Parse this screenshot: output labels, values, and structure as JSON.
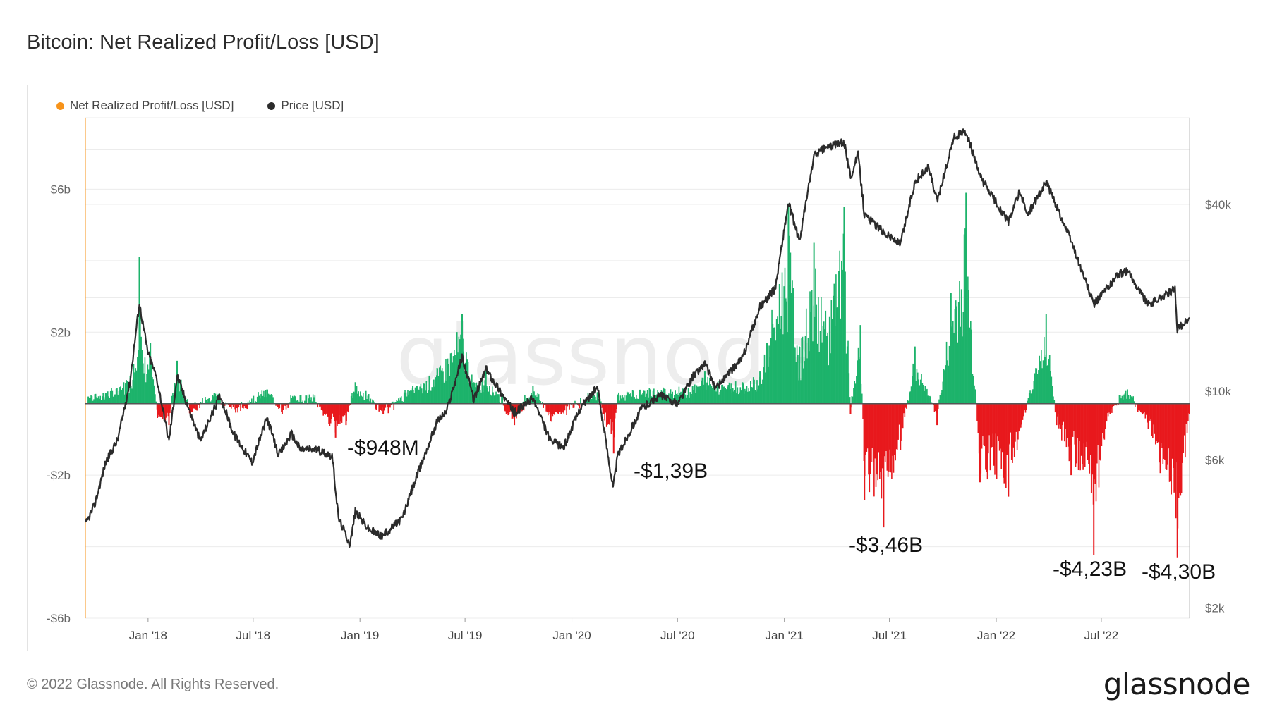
{
  "header": {
    "title": "Bitcoin: Net Realized Profit/Loss [USD]"
  },
  "footer": {
    "copyright": "© 2022 Glassnode. All Rights Reserved.",
    "brand": "glassnode"
  },
  "watermark": "glassnode",
  "colors": {
    "profit": "#1db36b",
    "loss": "#e8191d",
    "price": "#2b2b2b",
    "legend_nrpl": "#f7931a",
    "zero_line": "#555555",
    "grid": "#ececec"
  },
  "chart_data": {
    "type": "bar+line",
    "title": "Bitcoin: Net Realized Profit/Loss [USD]",
    "x_range": [
      "2017-09-15",
      "2022-11-30"
    ],
    "x_ticks": [
      "Jan '18",
      "Jul '18",
      "Jan '19",
      "Jul '19",
      "Jan '20",
      "Jul '20",
      "Jan '21",
      "Jul '21",
      "Jan '22",
      "Jul '22"
    ],
    "left_axis": {
      "label": "",
      "ticks": [
        "$6b",
        "$2b",
        "-$2b",
        "-$6b"
      ],
      "tick_values": [
        6,
        2,
        -2,
        -6
      ],
      "range": [
        -6,
        8
      ],
      "unit": "USD billions"
    },
    "right_axis": {
      "scale": "log",
      "ticks": [
        "$40k",
        "$10k",
        "$6k",
        "$2k"
      ],
      "tick_values": [
        40000,
        10000,
        6000,
        2000
      ],
      "unit": "USD"
    },
    "legend": [
      {
        "name": "Net Realized Profit/Loss [USD]",
        "color": "#f7931a"
      },
      {
        "name": "Price [USD]",
        "color": "#2b2b2b"
      }
    ],
    "annotations": [
      {
        "text": "-$948M",
        "date": "2018-11-20",
        "value_b": -0.95
      },
      {
        "text": "-$1,39B",
        "date": "2020-03-13",
        "value_b": -1.39
      },
      {
        "text": "-$3,46B",
        "date": "2021-06-21",
        "value_b": -3.46
      },
      {
        "text": "-$4,23B",
        "date": "2022-06-18",
        "value_b": -4.23
      },
      {
        "text": "-$4,30B",
        "date": "2022-11-09",
        "value_b": -4.3
      }
    ],
    "series": [
      {
        "name": "Price [USD]",
        "axis": "right",
        "points": [
          [
            "2017-09-15",
            3700
          ],
          [
            "2017-10-01",
            4300
          ],
          [
            "2017-10-20",
            5900
          ],
          [
            "2017-11-10",
            7000
          ],
          [
            "2017-12-01",
            10800
          ],
          [
            "2017-12-17",
            19200
          ],
          [
            "2017-12-31",
            13500
          ],
          [
            "2018-01-16",
            11000
          ],
          [
            "2018-02-06",
            6900
          ],
          [
            "2018-02-20",
            11200
          ],
          [
            "2018-03-10",
            9000
          ],
          [
            "2018-04-01",
            6900
          ],
          [
            "2018-05-05",
            9700
          ],
          [
            "2018-05-28",
            7300
          ],
          [
            "2018-06-29",
            5900
          ],
          [
            "2018-07-25",
            8200
          ],
          [
            "2018-08-14",
            6200
          ],
          [
            "2018-09-05",
            7300
          ],
          [
            "2018-09-20",
            6500
          ],
          [
            "2018-10-15",
            6500
          ],
          [
            "2018-11-14",
            6200
          ],
          [
            "2018-11-25",
            3900
          ],
          [
            "2018-12-15",
            3200
          ],
          [
            "2018-12-24",
            4100
          ],
          [
            "2019-01-15",
            3600
          ],
          [
            "2019-02-08",
            3400
          ],
          [
            "2019-03-15",
            3900
          ],
          [
            "2019-04-02",
            4900
          ],
          [
            "2019-05-14",
            8000
          ],
          [
            "2019-05-30",
            8600
          ],
          [
            "2019-06-26",
            12900
          ],
          [
            "2019-07-16",
            9400
          ],
          [
            "2019-08-06",
            11800
          ],
          [
            "2019-09-24",
            8500
          ],
          [
            "2019-10-26",
            9500
          ],
          [
            "2019-11-25",
            6900
          ],
          [
            "2019-12-18",
            6600
          ],
          [
            "2020-01-15",
            8800
          ],
          [
            "2020-02-14",
            10300
          ],
          [
            "2020-03-12",
            4900
          ],
          [
            "2020-03-20",
            6200
          ],
          [
            "2020-04-30",
            8800
          ],
          [
            "2020-06-01",
            9700
          ],
          [
            "2020-07-01",
            9100
          ],
          [
            "2020-07-27",
            11100
          ],
          [
            "2020-08-17",
            12300
          ],
          [
            "2020-09-05",
            10200
          ],
          [
            "2020-10-21",
            12800
          ],
          [
            "2020-11-20",
            18700
          ],
          [
            "2020-12-16",
            21400
          ],
          [
            "2021-01-08",
            40500
          ],
          [
            "2021-01-27",
            30500
          ],
          [
            "2021-02-21",
            57500
          ],
          [
            "2021-03-13",
            61000
          ],
          [
            "2021-04-14",
            63500
          ],
          [
            "2021-04-25",
            49000
          ],
          [
            "2021-05-08",
            58000
          ],
          [
            "2021-05-19",
            37000
          ],
          [
            "2021-06-22",
            32500
          ],
          [
            "2021-07-20",
            29800
          ],
          [
            "2021-08-14",
            47500
          ],
          [
            "2021-09-07",
            52700
          ],
          [
            "2021-09-21",
            40700
          ],
          [
            "2021-10-20",
            66000
          ],
          [
            "2021-11-10",
            68500
          ],
          [
            "2021-12-04",
            49200
          ],
          [
            "2022-01-22",
            35000
          ],
          [
            "2022-02-10",
            44000
          ],
          [
            "2022-02-24",
            37000
          ],
          [
            "2022-03-28",
            47300
          ],
          [
            "2022-05-10",
            30500
          ],
          [
            "2022-06-18",
            19000
          ],
          [
            "2022-07-30",
            23800
          ],
          [
            "2022-08-15",
            24400
          ],
          [
            "2022-09-20",
            19000
          ],
          [
            "2022-11-05",
            21300
          ],
          [
            "2022-11-09",
            15800
          ],
          [
            "2022-11-30",
            17100
          ]
        ]
      },
      {
        "name": "Net Realized Profit/Loss [USD]",
        "axis": "left",
        "unit": "USD billions",
        "points": [
          [
            "2017-09-20",
            0.2
          ],
          [
            "2017-10-20",
            0.3
          ],
          [
            "2017-11-20",
            0.6
          ],
          [
            "2017-12-07",
            1.1
          ],
          [
            "2017-12-17",
            4.1
          ],
          [
            "2017-12-22",
            1.5
          ],
          [
            "2018-01-05",
            1.7
          ],
          [
            "2018-01-17",
            -0.4
          ],
          [
            "2018-02-06",
            -0.6
          ],
          [
            "2018-02-20",
            1.2
          ],
          [
            "2018-03-15",
            -0.3
          ],
          [
            "2018-04-25",
            0.3
          ],
          [
            "2018-06-01",
            -0.25
          ],
          [
            "2018-07-25",
            0.4
          ],
          [
            "2018-08-20",
            -0.3
          ],
          [
            "2018-09-10",
            0.2
          ],
          [
            "2018-10-15",
            0.1
          ],
          [
            "2018-11-20",
            -0.95
          ],
          [
            "2018-12-08",
            -0.6
          ],
          [
            "2018-12-24",
            0.6
          ],
          [
            "2019-02-10",
            -0.3
          ],
          [
            "2019-04-02",
            0.5
          ],
          [
            "2019-05-14",
            1.0
          ],
          [
            "2019-06-26",
            2.5
          ],
          [
            "2019-07-16",
            0.6
          ],
          [
            "2019-08-06",
            0.9
          ],
          [
            "2019-09-24",
            -0.6
          ],
          [
            "2019-10-26",
            0.5
          ],
          [
            "2019-11-25",
            -0.5
          ],
          [
            "2020-02-14",
            0.3
          ],
          [
            "2020-03-13",
            -1.39
          ],
          [
            "2020-03-20",
            0.2
          ],
          [
            "2020-05-15",
            0.4
          ],
          [
            "2020-07-27",
            0.5
          ],
          [
            "2020-08-17",
            0.9
          ],
          [
            "2020-10-21",
            0.6
          ],
          [
            "2020-11-20",
            0.9
          ],
          [
            "2021-01-08",
            5.6
          ],
          [
            "2021-01-27",
            1.6
          ],
          [
            "2021-02-21",
            4.5
          ],
          [
            "2021-03-13",
            2.6
          ],
          [
            "2021-04-14",
            5.5
          ],
          [
            "2021-04-25",
            -0.3
          ],
          [
            "2021-05-12",
            2.2
          ],
          [
            "2021-05-19",
            -2.7
          ],
          [
            "2021-06-21",
            -3.46
          ],
          [
            "2021-07-20",
            -1.3
          ],
          [
            "2021-08-14",
            1.6
          ],
          [
            "2021-09-21",
            -0.6
          ],
          [
            "2021-10-15",
            3.1
          ],
          [
            "2021-11-10",
            5.9
          ],
          [
            "2021-12-04",
            -2.2
          ],
          [
            "2022-01-22",
            -2.6
          ],
          [
            "2022-03-28",
            2.5
          ],
          [
            "2022-04-15",
            -0.6
          ],
          [
            "2022-05-10",
            -2.0
          ],
          [
            "2022-06-14",
            -2.5
          ],
          [
            "2022-06-18",
            -4.23
          ],
          [
            "2022-07-10",
            -0.5
          ],
          [
            "2022-08-15",
            0.4
          ],
          [
            "2022-09-20",
            -0.7
          ],
          [
            "2022-11-09",
            -4.3
          ],
          [
            "2022-11-30",
            -0.3
          ]
        ]
      }
    ]
  }
}
